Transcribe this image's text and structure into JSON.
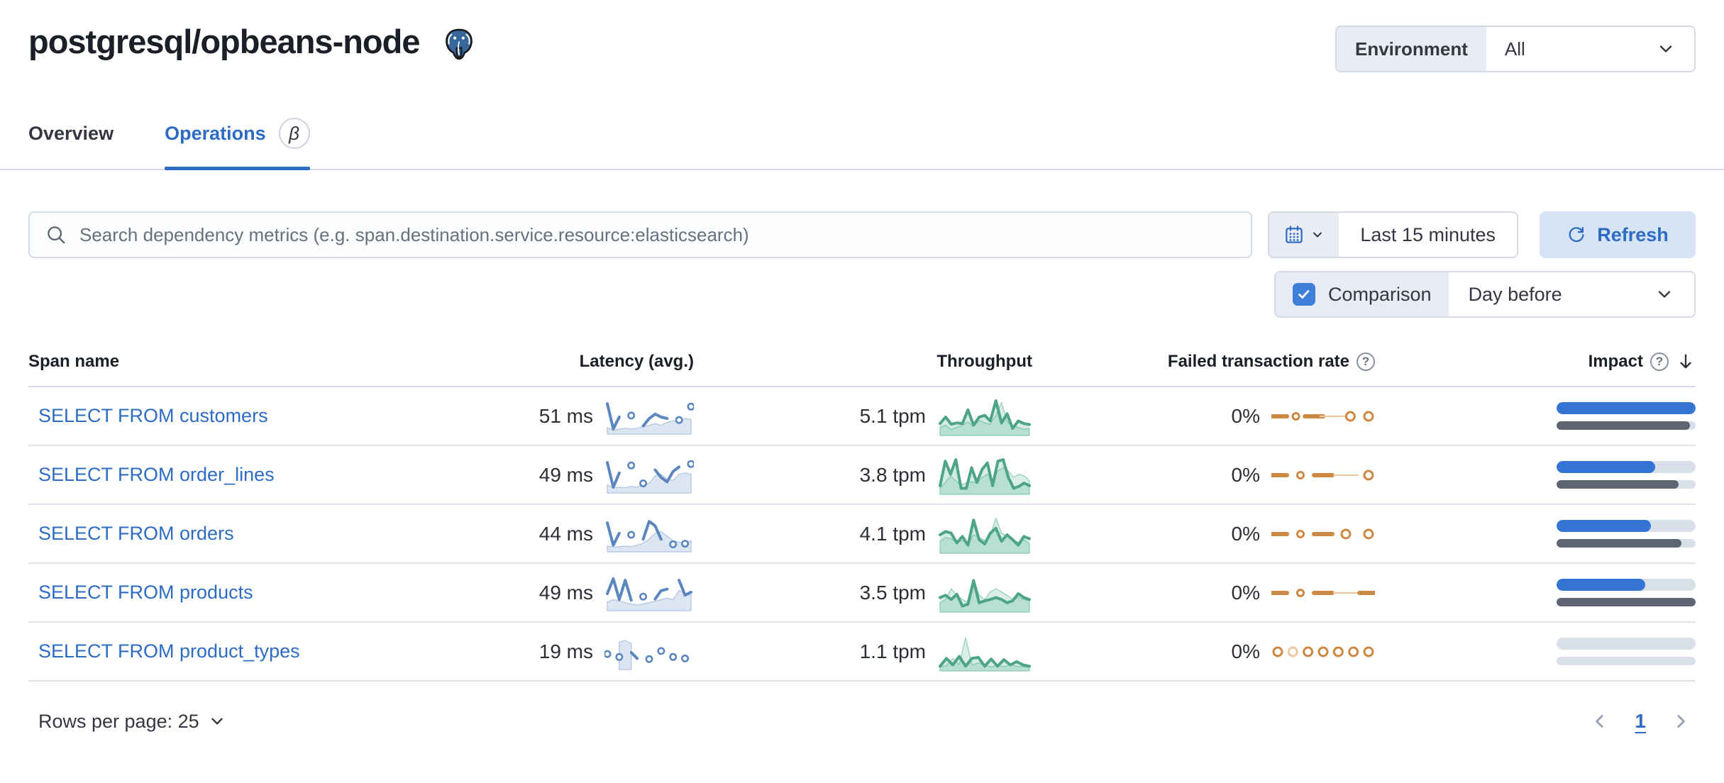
{
  "header": {
    "title": "postgresql/opbeans-node",
    "env_label": "Environment",
    "env_value": "All"
  },
  "tabs": [
    {
      "label": "Overview",
      "active": false
    },
    {
      "label": "Operations",
      "active": true,
      "beta": "β"
    }
  ],
  "toolbar": {
    "search_placeholder": "Search dependency metrics (e.g. span.destination.service.resource:elasticsearch)",
    "time_range": "Last 15 minutes",
    "refresh_label": "Refresh",
    "comparison_label": "Comparison",
    "comparison_value": "Day before"
  },
  "icons": {
    "help": "?"
  },
  "colors": {
    "latency": {
      "line": "#5c87be",
      "prevFill": "#dce6f2",
      "prevLine": "#b9cce3",
      "curFill": "none"
    },
    "throughput": {
      "line": "#4da487",
      "prevFill": "rgba(84,179,153,0.22)",
      "prevLine": "#9fd4bf",
      "curFill": "rgba(84,179,153,0.25)"
    },
    "failed": {
      "line": "#cd8843",
      "light": "#ecc9a2"
    },
    "impact_bar": "#3474d4",
    "impact_prev": "#5e6472",
    "link": "#2e6cc4"
  },
  "table": {
    "columns": [
      "Span name",
      "Latency (avg.)",
      "Throughput",
      "Failed transaction rate",
      "Impact"
    ],
    "rows": [
      {
        "name": "SELECT FROM customers",
        "latency": "51 ms",
        "throughput": "5.1 tpm",
        "failed_rate": "0%",
        "impact_pct": 100,
        "impact_prev_pct": 96,
        "latency_spark": {
          "kind": "line",
          "palette": "latency",
          "cur": [
            0.95,
            0.1,
            0.5,
            null,
            0.55,
            null,
            0.2,
            0.45,
            0.6,
            0.5,
            0.45,
            null,
            0.4,
            null,
            0.85
          ],
          "prev": [
            0.15,
            0.05,
            0.1,
            0.12,
            0.1,
            0.12,
            0.18,
            0.22,
            0.28,
            0.22,
            0.32,
            0.38,
            0.3,
            0.45,
            0.42
          ]
        },
        "throughput_spark": {
          "kind": "line",
          "palette": "throughput",
          "cur": [
            0.3,
            0.5,
            0.28,
            0.32,
            0.3,
            0.72,
            0.25,
            0.5,
            0.55,
            0.38,
            1.0,
            0.32,
            0.6,
            0.15,
            0.38,
            0.3,
            0.27
          ],
          "prev": [
            0.18,
            0.25,
            0.12,
            0.18,
            0.25,
            0.35,
            0.22,
            0.4,
            0.32,
            0.28,
            0.55,
            0.95,
            0.35,
            0.22,
            0.18,
            0.12,
            0.15
          ]
        },
        "failed_spark": {
          "kind": "flat",
          "palette": "failed",
          "marks": [
            "dash",
            "dot",
            "dash",
            "thin",
            "ring",
            "ring"
          ]
        }
      },
      {
        "name": "SELECT FROM order_lines",
        "latency": "49 ms",
        "throughput": "3.8 tpm",
        "failed_rate": "0%",
        "impact_pct": 71,
        "impact_prev_pct": 88,
        "latency_spark": {
          "kind": "line",
          "palette": "latency",
          "cur": [
            0.95,
            0.12,
            0.6,
            null,
            0.85,
            null,
            0.25,
            null,
            0.7,
            0.45,
            0.3,
            0.65,
            0.8,
            null,
            0.9
          ],
          "prev": [
            0.2,
            0.1,
            0.12,
            0.1,
            0.15,
            0.12,
            0.2,
            0.25,
            0.5,
            0.55,
            0.4,
            0.35,
            0.55,
            0.6,
            0.55
          ]
        },
        "throughput_spark": {
          "kind": "line",
          "palette": "throughput",
          "cur": [
            0.2,
            0.95,
            0.55,
            1.0,
            0.12,
            0.12,
            0.75,
            0.3,
            0.7,
            0.9,
            0.2,
            0.95,
            1.0,
            0.45,
            0.12,
            0.18,
            0.28,
            0.2
          ],
          "prev": [
            0.12,
            0.3,
            0.5,
            0.35,
            0.22,
            0.28,
            0.32,
            0.28,
            0.45,
            0.55,
            0.35,
            0.65,
            0.75,
            0.65,
            0.45,
            0.55,
            0.5,
            0.35
          ]
        },
        "failed_spark": {
          "kind": "flat",
          "palette": "failed",
          "marks": [
            "dash",
            "dot",
            "dash",
            "thin",
            "ring"
          ]
        }
      },
      {
        "name": "SELECT FROM orders",
        "latency": "44 ms",
        "throughput": "4.1 tpm",
        "failed_rate": "0%",
        "impact_pct": 68,
        "impact_prev_pct": 90,
        "latency_spark": {
          "kind": "line",
          "palette": "latency",
          "cur": [
            0.9,
            0.15,
            0.55,
            null,
            0.5,
            null,
            0.35,
            0.95,
            0.8,
            0.35,
            null,
            0.18,
            null,
            0.2,
            null
          ],
          "prev": [
            0.12,
            0.08,
            0.1,
            0.12,
            0.1,
            0.15,
            0.22,
            0.35,
            0.55,
            0.6,
            0.45,
            0.3,
            0.25,
            0.2,
            0.3
          ]
        },
        "throughput_spark": {
          "kind": "line",
          "palette": "throughput",
          "cur": [
            0.5,
            0.6,
            0.55,
            0.25,
            0.45,
            0.18,
            0.95,
            0.35,
            0.22,
            0.55,
            0.7,
            0.3,
            0.5,
            0.35,
            0.18,
            0.45,
            0.38
          ],
          "prev": [
            0.3,
            0.42,
            0.38,
            0.28,
            0.32,
            0.22,
            0.5,
            0.42,
            0.32,
            0.48,
            1.0,
            0.55,
            0.45,
            0.32,
            0.28,
            0.35,
            0.22
          ]
        },
        "failed_spark": {
          "kind": "flat",
          "palette": "failed",
          "marks": [
            "dash",
            "dot",
            "dash",
            "ring",
            "ring"
          ]
        }
      },
      {
        "name": "SELECT FROM products",
        "latency": "49 ms",
        "throughput": "3.5 tpm",
        "failed_rate": "0%",
        "impact_pct": 64,
        "impact_prev_pct": 100,
        "latency_spark": {
          "kind": "line",
          "palette": "latency",
          "cur": [
            0.5,
            1.0,
            0.3,
            0.95,
            0.28,
            null,
            0.4,
            null,
            0.32,
            0.6,
            0.65,
            null,
            0.95,
            0.45,
            0.55
          ],
          "prev": [
            0.22,
            0.3,
            0.25,
            0.2,
            0.15,
            0.12,
            0.15,
            0.2,
            0.25,
            0.3,
            0.35,
            0.3,
            0.6,
            0.5,
            0.45
          ]
        },
        "throughput_spark": {
          "kind": "line",
          "palette": "throughput",
          "cur": [
            0.38,
            0.45,
            0.32,
            0.48,
            0.12,
            0.18,
            0.9,
            0.22,
            0.28,
            0.32,
            0.38,
            0.32,
            0.22,
            0.28,
            0.5,
            0.38,
            0.32
          ],
          "prev": [
            0.22,
            0.32,
            0.65,
            0.45,
            0.32,
            0.22,
            0.95,
            0.45,
            0.32,
            0.55,
            0.65,
            0.55,
            0.45,
            0.32,
            0.38,
            0.32,
            0.28
          ]
        },
        "failed_spark": {
          "kind": "flat",
          "palette": "failed",
          "marks": [
            "dash",
            "dot",
            "dash",
            "thin",
            "dash"
          ]
        }
      },
      {
        "name": "SELECT FROM product_types",
        "latency": "19 ms",
        "throughput": "1.1 tpm",
        "failed_rate": "0%",
        "impact_pct": 0,
        "impact_prev_pct": 0,
        "latency_spark": {
          "kind": "line",
          "palette": "latency",
          "cur": [
            0.45,
            null,
            0.35,
            null,
            0.5,
            0.3,
            null,
            0.28,
            null,
            0.55,
            null,
            0.35,
            null,
            0.3,
            null
          ],
          "prev": [
            null,
            null,
            0.85,
            0.9,
            0.8,
            null,
            null,
            null,
            null,
            null,
            null,
            null,
            null,
            null,
            null
          ]
        },
        "throughput_spark": {
          "kind": "line",
          "palette": "throughput",
          "cur": [
            0.08,
            0.32,
            0.12,
            0.38,
            0.08,
            0.32,
            0.35,
            0.08,
            0.3,
            0.08,
            0.28,
            0.12,
            0.22,
            0.12,
            0.08
          ],
          "prev": [
            0.05,
            0.1,
            0.32,
            0.12,
            0.95,
            0.12,
            0.18,
            0.1,
            0.06,
            0.1,
            0.06,
            0.12,
            0.08,
            0.06,
            0.05
          ]
        },
        "failed_spark": {
          "kind": "flat",
          "palette": "failed",
          "marks": [
            "ring",
            "ringlight",
            "ring",
            "ring",
            "ring",
            "ring",
            "ring"
          ]
        }
      }
    ]
  },
  "footer": {
    "rows_per_page": "Rows per page: 25",
    "page": "1"
  }
}
